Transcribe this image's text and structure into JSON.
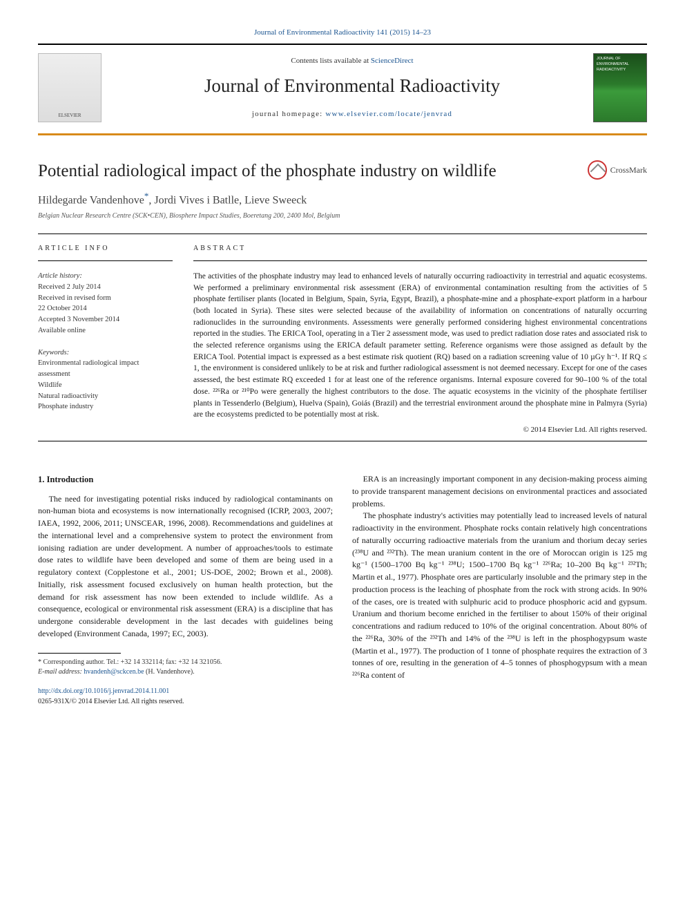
{
  "top_link": "Journal of Environmental Radioactivity 141 (2015) 14–23",
  "masthead": {
    "elsevier_label": "ELSEVIER",
    "contents_prefix": "Contents lists available at ",
    "contents_link": "ScienceDirect",
    "journal_name": "Journal of Environmental Radioactivity",
    "homepage_prefix": "journal homepage: ",
    "homepage_link": "www.elsevier.com/locate/jenvrad",
    "cover_text": "JOURNAL OF ENVIRONMENTAL RADIOACTIVITY"
  },
  "title": "Potential radiological impact of the phosphate industry on wildlife",
  "crossmark_label": "CrossMark",
  "authors": "Hildegarde Vandenhove",
  "author_sup": "*",
  "authors_rest": ", Jordi Vives i Batlle, Lieve Sweeck",
  "affiliation": "Belgian Nuclear Research Centre (SCK•CEN), Biosphere Impact Studies, Boeretang 200, 2400 Mol, Belgium",
  "info": {
    "heading": "article info",
    "history_head": "Article history:",
    "history": [
      "Received 2 July 2014",
      "Received in revised form",
      "22 October 2014",
      "Accepted 3 November 2014",
      "Available online"
    ],
    "keywords_head": "Keywords:",
    "keywords": [
      "Environmental radiological impact assessment",
      "Wildlife",
      "Natural radioactivity",
      "Phosphate industry"
    ]
  },
  "abstract": {
    "heading": "abstract",
    "text": "The activities of the phosphate industry may lead to enhanced levels of naturally occurring radioactivity in terrestrial and aquatic ecosystems. We performed a preliminary environmental risk assessment (ERA) of environmental contamination resulting from the activities of 5 phosphate fertiliser plants (located in Belgium, Spain, Syria, Egypt, Brazil), a phosphate-mine and a phosphate-export platform in a harbour (both located in Syria). These sites were selected because of the availability of information on concentrations of naturally occurring radionuclides in the surrounding environments. Assessments were generally performed considering highest environmental concentrations reported in the studies. The ERICA Tool, operating in a Tier 2 assessment mode, was used to predict radiation dose rates and associated risk to the selected reference organisms using the ERICA default parameter setting. Reference organisms were those assigned as default by the ERICA Tool. Potential impact is expressed as a best estimate risk quotient (RQ) based on a radiation screening value of 10 µGy h⁻¹. If RQ ≤ 1, the environment is considered unlikely to be at risk and further radiological assessment is not deemed necessary. Except for one of the cases assessed, the best estimate RQ exceeded 1 for at least one of the reference organisms. Internal exposure covered for 90–100 % of the total dose. ²²⁶Ra or ²¹⁰Po were generally the highest contributors to the dose. The aquatic ecosystems in the vicinity of the phosphate fertiliser plants in Tessenderlo (Belgium), Huelva (Spain), Goiás (Brazil) and the terrestrial environment around the phosphate mine in Palmyra (Syria) are the ecosystems predicted to be potentially most at risk.",
    "copyright": "© 2014 Elsevier Ltd. All rights reserved."
  },
  "body": {
    "section_head": "1. Introduction",
    "left_paras": [
      "The need for investigating potential risks induced by radiological contaminants on non-human biota and ecosystems is now internationally recognised (ICRP, 2003, 2007; IAEA, 1992, 2006, 2011; UNSCEAR, 1996, 2008). Recommendations and guidelines at the international level and a comprehensive system to protect the environment from ionising radiation are under development. A number of approaches/tools to estimate dose rates to wildlife have been developed and some of them are being used in a regulatory context (Copplestone et al., 2001; US-DOE, 2002; Brown et al., 2008). Initially, risk assessment focused exclusively on human health protection, but the demand for risk assessment has now been extended to include wildlife. As a consequence, ecological or environmental risk assessment (ERA) is a discipline that has undergone considerable development in the last decades with guidelines being developed (Environment Canada, 1997; EC, 2003)."
    ],
    "right_paras": [
      "ERA is an increasingly important component in any decision-making process aiming to provide transparent management decisions on environmental practices and associated problems.",
      "The phosphate industry's activities may potentially lead to increased levels of natural radioactivity in the environment. Phosphate rocks contain relatively high concentrations of naturally occurring radioactive materials from the uranium and thorium decay series (²³⁸U and ²³²Th). The mean uranium content in the ore of Moroccan origin is 125 mg kg⁻¹ (1500–1700 Bq kg⁻¹ ²³⁸U; 1500–1700 Bq kg⁻¹ ²²⁶Ra; 10–200 Bq kg⁻¹ ²³²Th; Martin et al., 1977). Phosphate ores are particularly insoluble and the primary step in the production process is the leaching of phosphate from the rock with strong acids. In 90% of the cases, ore is treated with sulphuric acid to produce phosphoric acid and gypsum. Uranium and thorium become enriched in the fertiliser to about 150% of their original concentrations and radium reduced to 10% of the original concentration. About 80% of the ²²⁶Ra, 30% of the ²³²Th and 14% of the ²³⁸U is left in the phosphogypsum waste (Martin et al., 1977). The production of 1 tonne of phosphate requires the extraction of 3 tonnes of ore, resulting in the generation of 4–5 tonnes of phosphogypsum with a mean ²²⁶Ra content of"
    ]
  },
  "footnote": {
    "corr": "* Corresponding author. Tel.: +32 14 332114; fax: +32 14 321056.",
    "email_label": "E-mail address: ",
    "email": "hvandenh@sckcen.be",
    "email_suffix": " (H. Vandenhove)."
  },
  "doi": {
    "link": "http://dx.doi.org/10.1016/j.jenvrad.2014.11.001",
    "issn_line": "0265-931X/© 2014 Elsevier Ltd. All rights reserved."
  },
  "colors": {
    "link_blue": "#1a5490",
    "rule_orange": "#d88a1a",
    "text": "#1a1a1a"
  }
}
